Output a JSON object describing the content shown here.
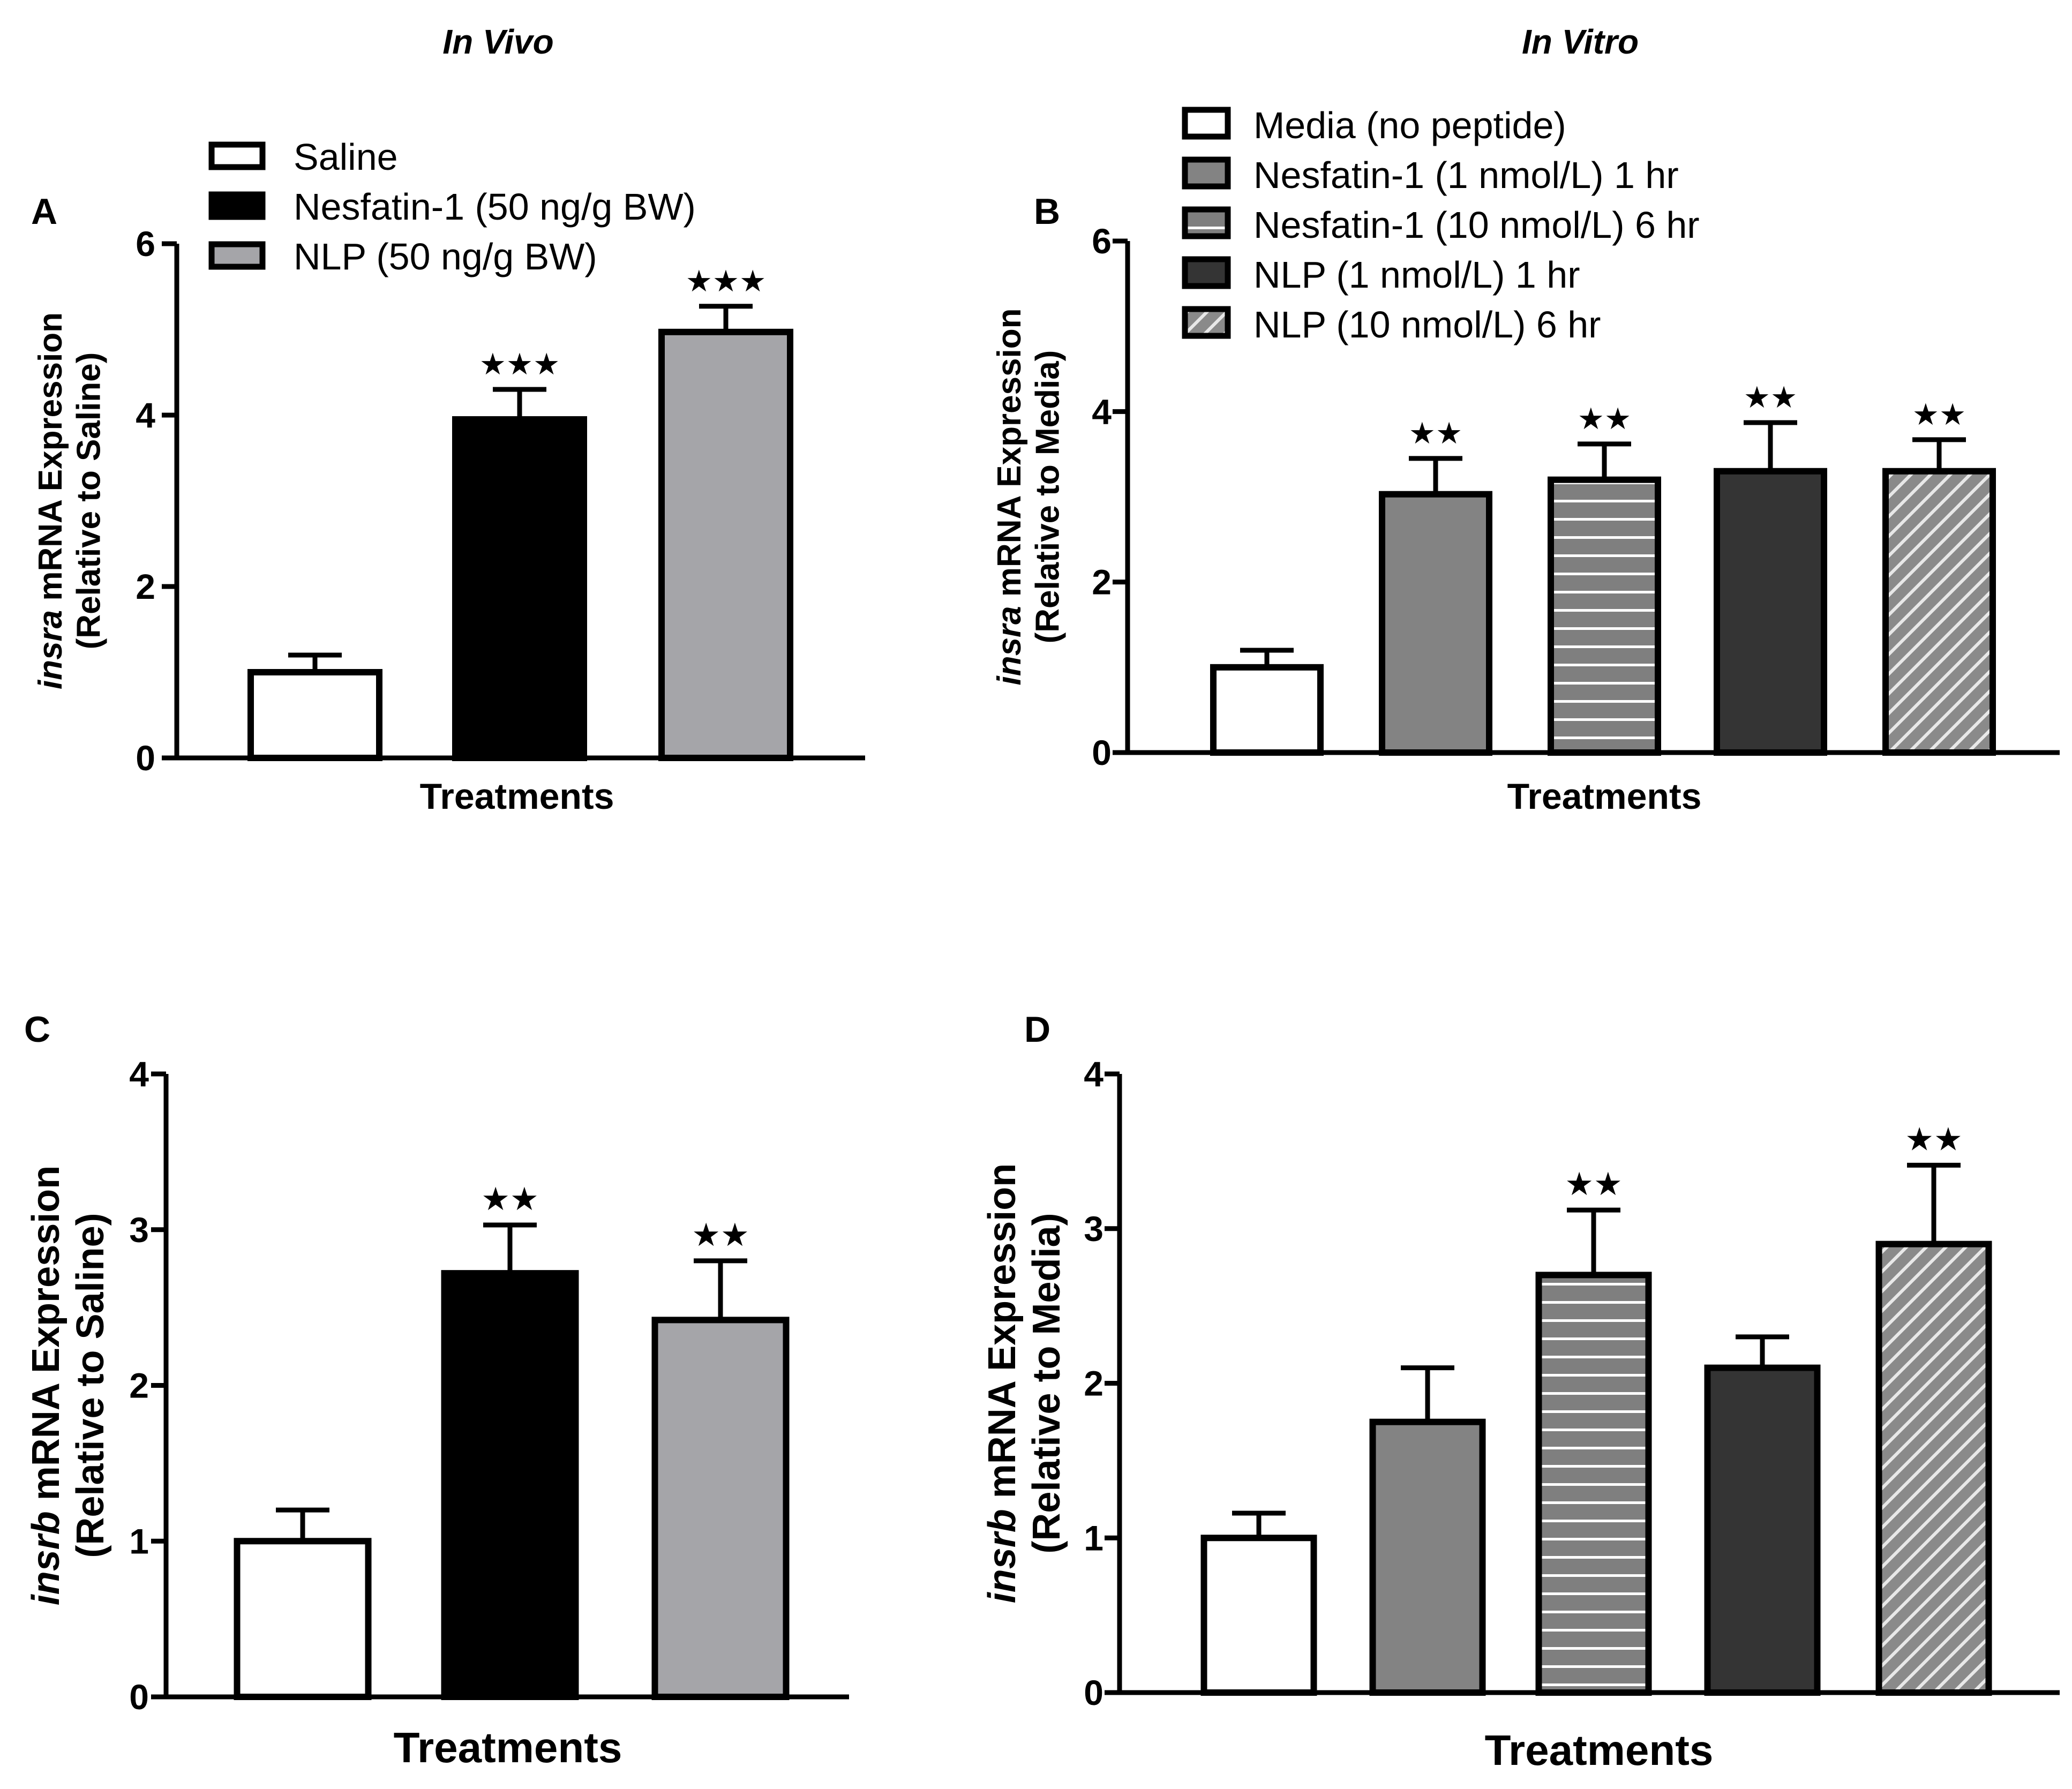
{
  "headers": {
    "in_vivo": "In Vivo",
    "in_vitro": "In Vitro"
  },
  "legend_in_vivo": [
    "Saline",
    "Nesfatin-1 (50 ng/g BW)",
    "NLP (50 ng/g BW)"
  ],
  "legend_in_vitro": [
    "Media (no peptide)",
    "Nesfatin-1 (1 nmol/L) 1 hr",
    "Nesfatin-1 (10 nmol/L) 6 hr",
    "NLP (1 nmol/L) 1 hr",
    "NLP (10 nmol/L) 6 hr"
  ],
  "colors": {
    "white": "#ffffff",
    "black": "#000000",
    "light_gray": "#a5a5a9",
    "mid_gray": "#838383",
    "dark_gray": "#343434",
    "striped": "#8a8a8a"
  },
  "chart_data": [
    {
      "panel": "A",
      "type": "bar",
      "ylabel_gene": "insra",
      "ylabel_rest": " mRNA Expression",
      "ylabel_line2": "(Relative to Saline)",
      "xlabel": "Treatments",
      "ylim": [
        0,
        6
      ],
      "yticks": [
        "0",
        "2",
        "4",
        "6"
      ],
      "categories": [
        "Saline",
        "Nesfatin-1 (50 ng/g BW)",
        "NLP (50 ng/g BW)"
      ],
      "values": [
        1.0,
        3.95,
        4.97
      ],
      "errors": [
        0.2,
        0.35,
        0.3
      ],
      "significance": [
        "",
        "★★★",
        "★★★"
      ]
    },
    {
      "panel": "B",
      "type": "bar",
      "ylabel_gene": "insra",
      "ylabel_rest": " mRNA Expression",
      "ylabel_line2": "(Relative to Media)",
      "xlabel": "Treatments",
      "ylim": [
        0,
        6
      ],
      "yticks": [
        "0",
        "2",
        "4",
        "6"
      ],
      "categories": [
        "Media (no peptide)",
        "Nesfatin-1 (1 nmol/L) 1 hr",
        "Nesfatin-1 (10 nmol/L) 6 hr",
        "NLP (1 nmol/L) 1 hr",
        "NLP (10 nmol/L) 6 hr"
      ],
      "values": [
        1.0,
        3.03,
        3.2,
        3.3,
        3.3
      ],
      "errors": [
        0.2,
        0.42,
        0.42,
        0.57,
        0.37
      ],
      "significance": [
        "",
        "★★",
        "★★",
        "★★",
        "★★"
      ]
    },
    {
      "panel": "C",
      "type": "bar",
      "ylabel_gene": "insrb",
      "ylabel_rest": " mRNA Expression",
      "ylabel_line2": "(Relative to Saline)",
      "xlabel": "Treatments",
      "ylim": [
        0,
        4
      ],
      "yticks": [
        "0",
        "1",
        "2",
        "3",
        "4"
      ],
      "categories": [
        "Saline",
        "Nesfatin-1 (50 ng/g BW)",
        "NLP (50 ng/g BW)"
      ],
      "values": [
        1.0,
        2.72,
        2.42
      ],
      "errors": [
        0.2,
        0.31,
        0.38
      ],
      "significance": [
        "",
        "★★",
        "★★"
      ]
    },
    {
      "panel": "D",
      "type": "bar",
      "ylabel_gene": "insrb",
      "ylabel_rest": " mRNA Expression",
      "ylabel_line2": "(Relative to Media)",
      "xlabel": "Treatments",
      "ylim": [
        0,
        4
      ],
      "yticks": [
        "0",
        "1",
        "2",
        "3",
        "4"
      ],
      "categories": [
        "Media (no peptide)",
        "Nesfatin-1 (1 nmol/L) 1 hr",
        "Nesfatin-1 (10 nmol/L) 6 hr",
        "NLP (1 nmol/L) 1 hr",
        "NLP (10 nmol/L) 6 hr"
      ],
      "values": [
        1.0,
        1.75,
        2.7,
        2.1,
        2.9
      ],
      "errors": [
        0.16,
        0.35,
        0.42,
        0.2,
        0.51
      ],
      "significance": [
        "",
        "",
        "★★",
        "",
        "★★"
      ]
    }
  ]
}
